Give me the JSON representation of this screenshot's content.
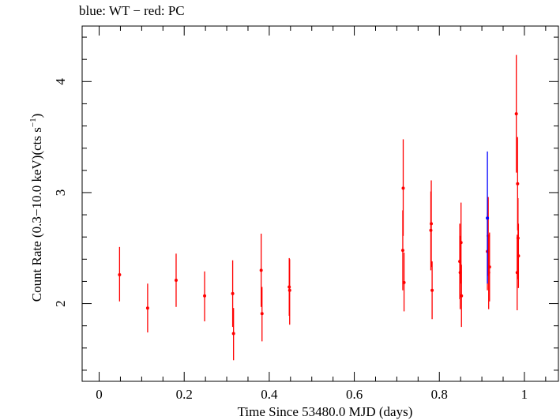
{
  "chart_data": {
    "type": "scatter",
    "title": "blue: WT − red: PC",
    "xlabel": "Time Since 53480.0 MJD (days)",
    "ylabel_main": "Count Rate (0.3−10.0 keV)(cts s",
    "ylabel_exp": "−1",
    "ylabel_close": ")",
    "xlim": [
      -0.04,
      1.08
    ],
    "ylim": [
      1.3,
      4.5
    ],
    "xticks": [
      0,
      0.2,
      0.4,
      0.6,
      0.8,
      1
    ],
    "xtick_labels": [
      "0",
      "0.2",
      "0.4",
      "0.6",
      "0.8",
      "1"
    ],
    "yticks": [
      2,
      3,
      4
    ],
    "ytick_labels": [
      "2",
      "3",
      "4"
    ],
    "grid": false,
    "legend": "none",
    "series": [
      {
        "color": "#0000ff",
        "points": [
          {
            "x": 0.913,
            "y": 2.77,
            "lo": 2.18,
            "hi": 3.37
          }
        ]
      },
      {
        "color": "#ff0000",
        "points": [
          {
            "x": 0.048,
            "y": 2.26,
            "lo": 2.02,
            "hi": 2.51
          },
          {
            "x": 0.114,
            "y": 1.96,
            "lo": 1.74,
            "hi": 2.18
          },
          {
            "x": 0.181,
            "y": 2.21,
            "lo": 1.97,
            "hi": 2.45
          },
          {
            "x": 0.248,
            "y": 2.07,
            "lo": 1.84,
            "hi": 2.29
          },
          {
            "x": 0.314,
            "y": 2.09,
            "lo": 1.79,
            "hi": 2.39
          },
          {
            "x": 0.316,
            "y": 1.73,
            "lo": 1.49,
            "hi": 1.96
          },
          {
            "x": 0.381,
            "y": 2.3,
            "lo": 1.97,
            "hi": 2.63
          },
          {
            "x": 0.383,
            "y": 1.91,
            "lo": 1.66,
            "hi": 2.15
          },
          {
            "x": 0.447,
            "y": 2.15,
            "lo": 1.89,
            "hi": 2.41
          },
          {
            "x": 0.448,
            "y": 2.12,
            "lo": 1.81,
            "hi": 2.4
          },
          {
            "x": 0.714,
            "y": 2.48,
            "lo": 2.12,
            "hi": 2.84
          },
          {
            "x": 0.715,
            "y": 3.04,
            "lo": 2.61,
            "hi": 3.48
          },
          {
            "x": 0.717,
            "y": 2.19,
            "lo": 1.93,
            "hi": 2.46
          },
          {
            "x": 0.78,
            "y": 2.66,
            "lo": 2.3,
            "hi": 3.01
          },
          {
            "x": 0.781,
            "y": 2.72,
            "lo": 2.33,
            "hi": 3.11
          },
          {
            "x": 0.783,
            "y": 2.12,
            "lo": 1.86,
            "hi": 2.38
          },
          {
            "x": 0.848,
            "y": 2.38,
            "lo": 2.04,
            "hi": 2.72
          },
          {
            "x": 0.849,
            "y": 2.28,
            "lo": 1.95,
            "hi": 2.61
          },
          {
            "x": 0.851,
            "y": 2.55,
            "lo": 2.18,
            "hi": 2.91
          },
          {
            "x": 0.852,
            "y": 2.07,
            "lo": 1.79,
            "hi": 2.35
          },
          {
            "x": 0.913,
            "y": 2.47,
            "lo": 2.12,
            "hi": 2.82
          },
          {
            "x": 0.915,
            "y": 2.61,
            "lo": 2.25,
            "hi": 2.96
          },
          {
            "x": 0.916,
            "y": 2.28,
            "lo": 1.95,
            "hi": 2.61
          },
          {
            "x": 0.918,
            "y": 2.33,
            "lo": 2.02,
            "hi": 2.64
          },
          {
            "x": 0.981,
            "y": 3.71,
            "lo": 3.18,
            "hi": 4.24
          },
          {
            "x": 0.983,
            "y": 2.28,
            "lo": 1.94,
            "hi": 2.62
          },
          {
            "x": 0.984,
            "y": 3.08,
            "lo": 2.66,
            "hi": 3.5
          },
          {
            "x": 0.985,
            "y": 2.59,
            "lo": 2.22,
            "hi": 2.95
          },
          {
            "x": 0.986,
            "y": 2.43,
            "lo": 2.14,
            "hi": 2.72
          }
        ]
      }
    ]
  }
}
